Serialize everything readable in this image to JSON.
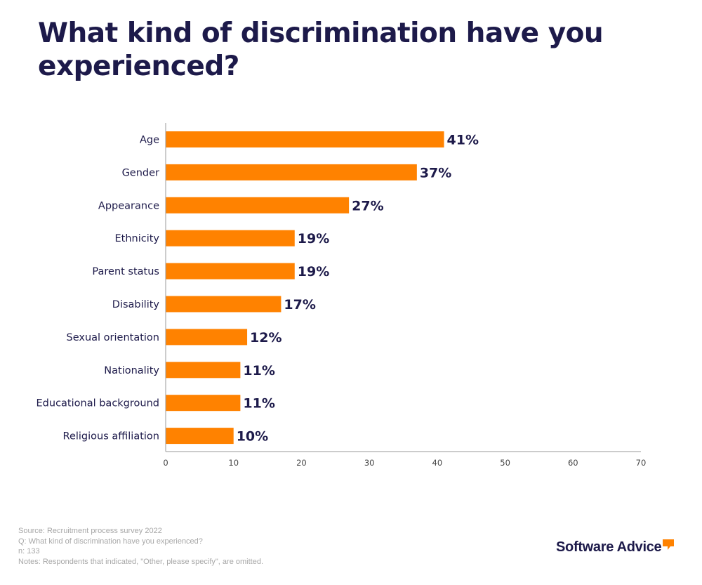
{
  "title": "What kind of discrimination have you experienced?",
  "colors": {
    "bar": "#ff8200",
    "text": "#1d1a4a",
    "axis": "#9a9a9a",
    "footer": "#a7a7a7"
  },
  "chart_data": {
    "type": "bar",
    "orientation": "horizontal",
    "title": "What kind of discrimination have you experienced?",
    "categories": [
      "Age",
      "Gender",
      "Appearance",
      "Ethnicity",
      "Parent status",
      "Disability",
      "Sexual orientation",
      "Nationality",
      "Educational background",
      "Religious affiliation"
    ],
    "values": [
      41,
      37,
      27,
      19,
      19,
      17,
      12,
      11,
      11,
      10
    ],
    "value_labels": [
      "41%",
      "37%",
      "27%",
      "19%",
      "19%",
      "17%",
      "12%",
      "11%",
      "11%",
      "10%"
    ],
    "xlim": [
      0,
      70
    ],
    "xticks": [
      0,
      10,
      20,
      30,
      40,
      50,
      60,
      70
    ],
    "grid": false,
    "legend": "none"
  },
  "footer": {
    "source": "Source: Recruitment process survey 2022",
    "question": "Q: What kind of discrimination have you experienced?",
    "n": "n: 133",
    "notes": "Notes: Respondents that indicated, \"Other, please specify\", are omitted."
  },
  "logo": {
    "text": "Software Advice",
    "registered": "®",
    "icon": "speech-bubble-icon"
  }
}
